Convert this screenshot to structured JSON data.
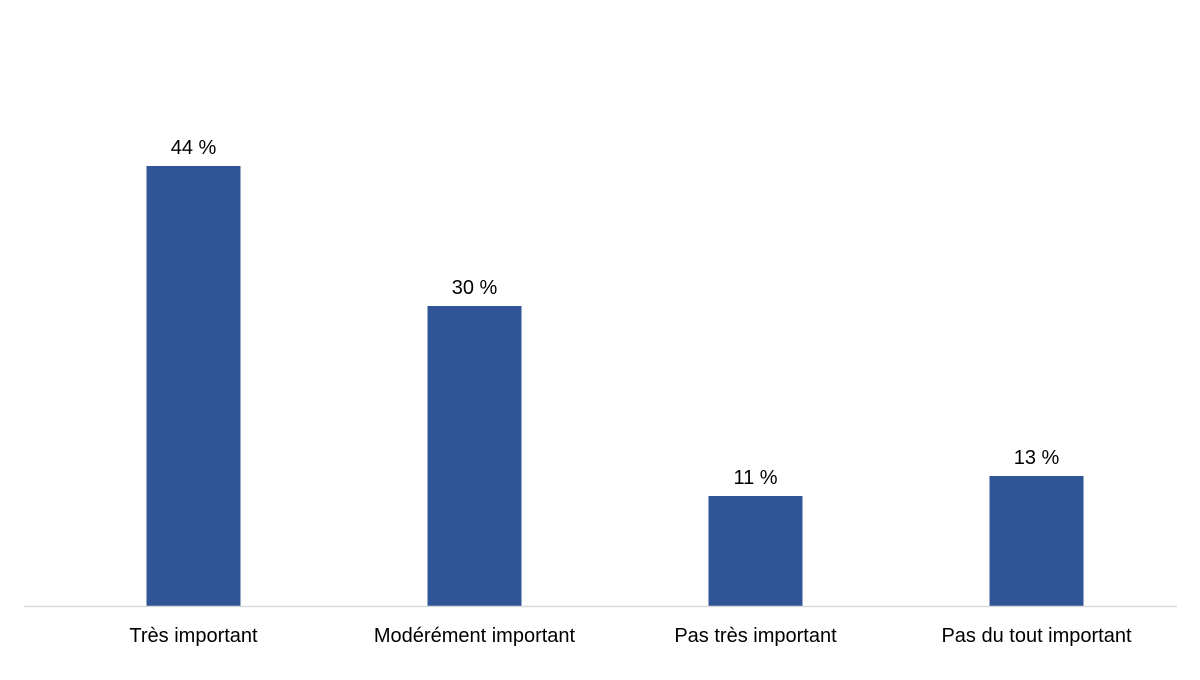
{
  "chart_data": {
    "type": "bar",
    "title": "",
    "xlabel": "",
    "ylabel": "",
    "categories": [
      "Très important",
      "Modérément important",
      "Pas très important",
      "Pas du tout important"
    ],
    "values": [
      44,
      30,
      11,
      13
    ],
    "value_labels": [
      "44 %",
      "30 %",
      "11 %",
      "13 %"
    ],
    "ylim": [
      0,
      50
    ],
    "grid": false,
    "legend": "none",
    "bar_color": "#2F5597",
    "axis_color": "#D9D9D9"
  }
}
